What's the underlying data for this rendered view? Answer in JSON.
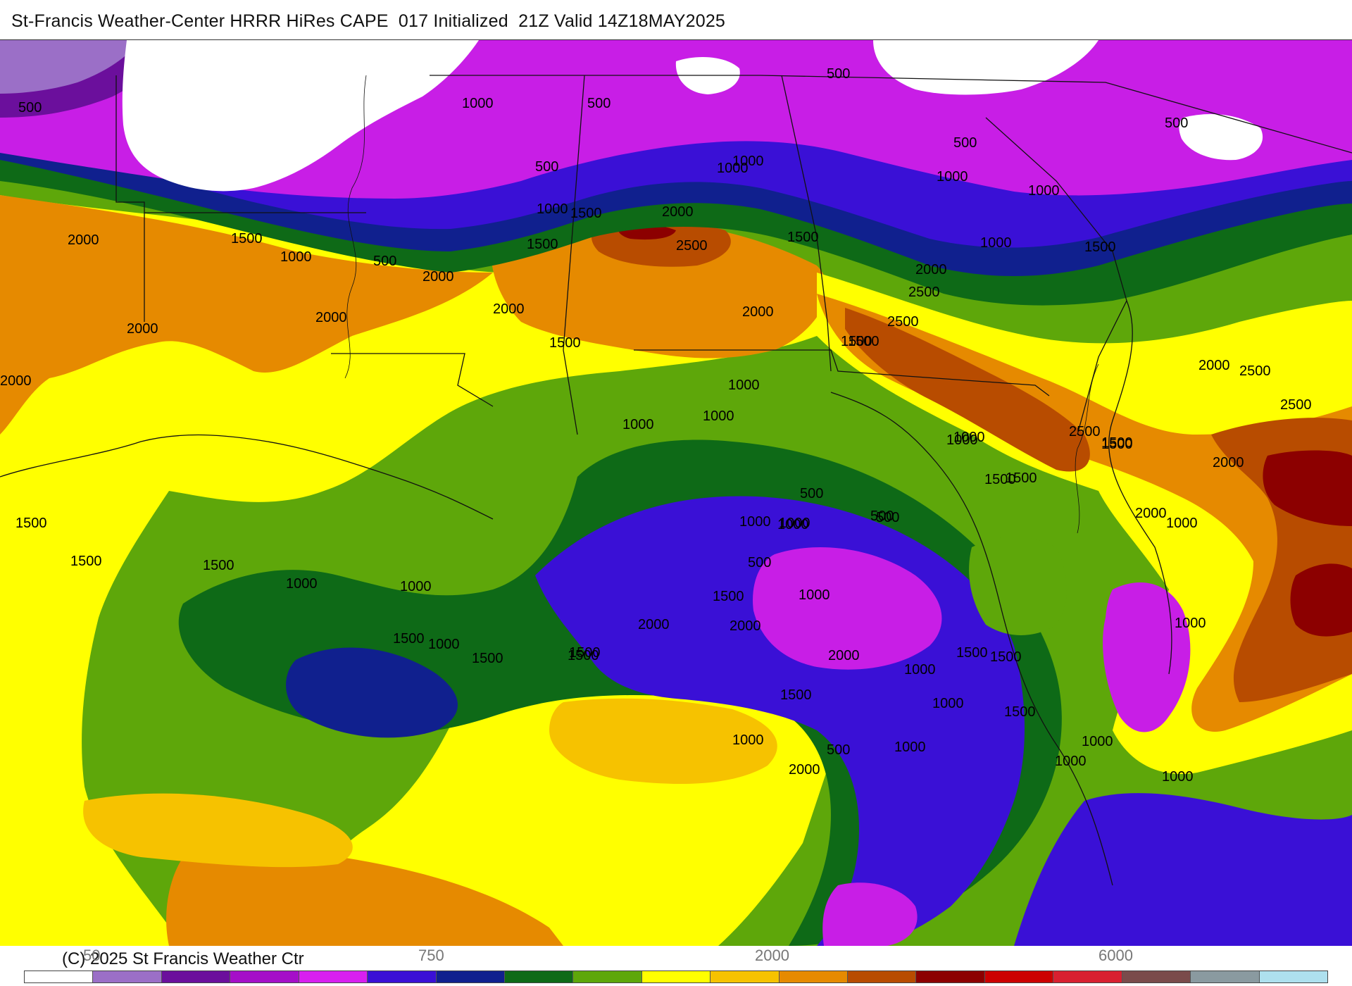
{
  "header": {
    "title": "St-Francis Weather-Center HRRR HiRes CAPE  017 Initialized  21Z Valid 14Z18MAY2025"
  },
  "footer": {
    "copyright": "(C) 2025 St Francis Weather Ctr",
    "scale_labels": [
      "50",
      "750",
      "2000",
      "6000"
    ]
  },
  "colorbar": {
    "colors": [
      "#ffffff",
      "#9b6fc7",
      "#6b0f9c",
      "#a50fc8",
      "#d81ff0",
      "#3a10d6",
      "#10208e",
      "#0e6a17",
      "#5ea70a",
      "#ffff00",
      "#f6c200",
      "#e68a00",
      "#b84c00",
      "#8c0000",
      "#cc0000",
      "#d82030",
      "#7a4b4b",
      "#8a9aa0",
      "#aee0ee"
    ]
  },
  "map": {
    "colors": {
      "white": "#ffffff",
      "lavender": "#9b6fc7",
      "violet": "#6b0f9c",
      "magenta": "#c81ee6",
      "blue": "#3a10d6",
      "navy": "#10208e",
      "dark_green": "#0e6a17",
      "green": "#5ea70a",
      "yellow": "#ffff00",
      "gold": "#f6c200",
      "orange": "#e68a00",
      "brown": "#b84c00",
      "dark_red": "#8c0000"
    },
    "contour_labels": [
      {
        "text": "500"
      },
      {
        "text": "1000"
      },
      {
        "text": "500"
      },
      {
        "text": "500"
      },
      {
        "text": "500"
      },
      {
        "text": "500"
      },
      {
        "text": "1000"
      },
      {
        "text": "1000"
      },
      {
        "text": "1000"
      },
      {
        "text": "1000"
      },
      {
        "text": "1000"
      },
      {
        "text": "1500"
      },
      {
        "text": "1000"
      },
      {
        "text": "1500"
      },
      {
        "text": "500"
      },
      {
        "text": "2000"
      },
      {
        "text": "1500"
      },
      {
        "text": "2500"
      },
      {
        "text": "1000"
      },
      {
        "text": "2000"
      },
      {
        "text": "1500"
      },
      {
        "text": "500"
      },
      {
        "text": "2000"
      },
      {
        "text": "2000"
      },
      {
        "text": "2000"
      },
      {
        "text": "2000"
      },
      {
        "text": "2500"
      },
      {
        "text": "2500"
      },
      {
        "text": "2000"
      },
      {
        "text": "1500"
      },
      {
        "text": "1500"
      },
      {
        "text": "1500"
      },
      {
        "text": "1500"
      },
      {
        "text": "2000"
      },
      {
        "text": "1000"
      },
      {
        "text": "1000"
      },
      {
        "text": "1000"
      },
      {
        "text": "2000"
      },
      {
        "text": "2500"
      },
      {
        "text": "2500"
      },
      {
        "text": "1000"
      },
      {
        "text": "1500"
      },
      {
        "text": "2000"
      },
      {
        "text": "1500"
      },
      {
        "text": "1000"
      },
      {
        "text": "1500"
      },
      {
        "text": "500"
      },
      {
        "text": "500"
      },
      {
        "text": "1000"
      },
      {
        "text": "1000"
      },
      {
        "text": "1000"
      },
      {
        "text": "2500"
      },
      {
        "text": "1000"
      },
      {
        "text": "2000"
      },
      {
        "text": "1500"
      },
      {
        "text": "500"
      },
      {
        "text": "1000"
      },
      {
        "text": "500"
      },
      {
        "text": "1500"
      },
      {
        "text": "1000"
      },
      {
        "text": "1500"
      },
      {
        "text": "2000"
      },
      {
        "text": "2000"
      },
      {
        "text": "1000"
      },
      {
        "text": "1500"
      },
      {
        "text": "1500"
      },
      {
        "text": "1500"
      },
      {
        "text": "1000"
      },
      {
        "text": "1000"
      },
      {
        "text": "1500"
      },
      {
        "text": "1500"
      },
      {
        "text": "1500"
      },
      {
        "text": "2000"
      },
      {
        "text": "1000"
      },
      {
        "text": "1500"
      },
      {
        "text": "1500"
      },
      {
        "text": "1000"
      },
      {
        "text": "1500"
      },
      {
        "text": "1000"
      },
      {
        "text": "1000"
      },
      {
        "text": "500"
      },
      {
        "text": "2000"
      },
      {
        "text": "2000"
      },
      {
        "text": "1000"
      },
      {
        "text": "1500"
      },
      {
        "text": "1000"
      },
      {
        "text": "1000"
      }
    ]
  }
}
